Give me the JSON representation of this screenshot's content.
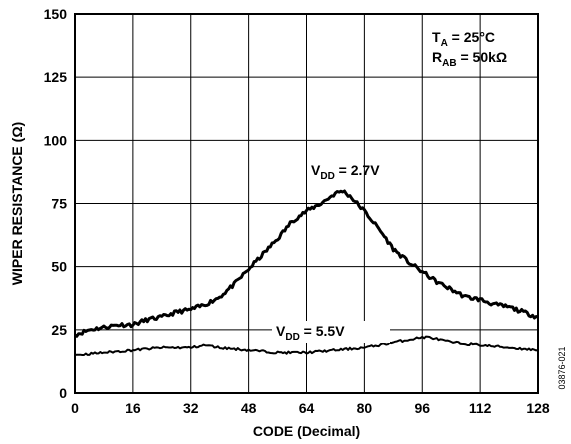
{
  "chart_data": {
    "type": "line",
    "title": "",
    "xlabel": "CODE (Decimal)",
    "ylabel": "WIPER RESISTANCE (Ω)",
    "xlim": [
      0,
      128
    ],
    "ylim": [
      0,
      150
    ],
    "xticks": [
      0,
      16,
      32,
      48,
      64,
      80,
      96,
      112,
      128
    ],
    "yticks": [
      0,
      25,
      50,
      75,
      100,
      125,
      150
    ],
    "grid": true,
    "legend": "none",
    "conditions": {
      "ta_main": "T",
      "ta_sub": "A",
      "ta_rest": " = 25°C",
      "rab_main": "R",
      "rab_sub": "AB",
      "rab_rest": " = 50kΩ"
    },
    "figure_id": "03876-021",
    "series": [
      {
        "label_main": "V",
        "label_sub": "DD",
        "label_rest": " = 2.7V",
        "color": "#000000",
        "x": [
          0,
          4,
          8,
          12,
          16,
          20,
          24,
          28,
          32,
          36,
          40,
          44,
          48,
          52,
          56,
          60,
          64,
          68,
          72,
          74,
          76,
          78,
          80,
          84,
          88,
          92,
          96,
          100,
          104,
          108,
          112,
          116,
          120,
          124,
          128
        ],
        "y": [
          23,
          25,
          26,
          27,
          27,
          29,
          30,
          32,
          33,
          35,
          38,
          43,
          49,
          55,
          61,
          68,
          72,
          75,
          79,
          80,
          78,
          75,
          72,
          65,
          57,
          52,
          48,
          44,
          41,
          38,
          37,
          35,
          34,
          32,
          30
        ]
      },
      {
        "label_main": "V",
        "label_sub": "DD",
        "label_rest": " = 5.5V",
        "color": "#000000",
        "x": [
          0,
          8,
          16,
          24,
          32,
          36,
          40,
          48,
          56,
          64,
          72,
          80,
          88,
          96,
          98,
          104,
          112,
          120,
          128
        ],
        "y": [
          15,
          16,
          17,
          18,
          18,
          19,
          18,
          17,
          16,
          16,
          17,
          18,
          20,
          22,
          22,
          20,
          19,
          18,
          17
        ]
      }
    ]
  }
}
